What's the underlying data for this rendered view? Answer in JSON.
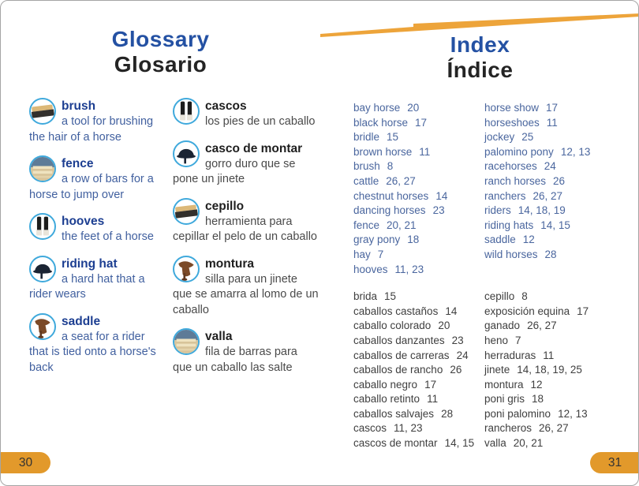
{
  "colors": {
    "accent_orange": "#e2992b",
    "swoosh_orange": "#eda43a",
    "heading_blue": "#2451a3",
    "heading_black": "#242424",
    "glossary_term_en": "#1c3e91",
    "glossary_def_en": "#41609f",
    "index_en_blue": "#4a669e",
    "index_es_gray": "#3f3f3f",
    "icon_ring_blue": "#3fa9dc"
  },
  "left_page": {
    "title_en": "Glossary",
    "title_es": "Glosario",
    "page_number": "30",
    "entries_en": [
      {
        "term": "brush",
        "definition": "a tool for brushing the hair of a horse",
        "icon": "brush-icon"
      },
      {
        "term": "fence",
        "definition": "a row of bars for a horse to jump over",
        "icon": "fence-icon"
      },
      {
        "term": "hooves",
        "definition": "the feet of a horse",
        "icon": "hooves-icon"
      },
      {
        "term": "riding hat",
        "definition": "a hard hat that a rider wears",
        "icon": "riding-hat-icon"
      },
      {
        "term": "saddle",
        "definition": "a seat for a rider that is tied onto a horse's back",
        "icon": "saddle-icon"
      }
    ],
    "entries_es": [
      {
        "term": "cascos",
        "definition": "los pies de un caballo",
        "icon": "hooves-icon"
      },
      {
        "term": "casco de montar",
        "definition": "gorro duro que se pone un jinete",
        "icon": "riding-hat-icon"
      },
      {
        "term": "cepillo",
        "definition": "herramienta para cepillar el pelo de un caballo",
        "icon": "brush-icon"
      },
      {
        "term": "montura",
        "definition": "silla para un jinete que se amarra al lomo de un caballo",
        "icon": "saddle-icon"
      },
      {
        "term": "valla",
        "definition": "fila de barras para que un caballo las salte",
        "icon": "fence-icon"
      }
    ]
  },
  "right_page": {
    "title_en": "Index",
    "title_es": "Índice",
    "page_number": "31",
    "index_en_col1": [
      {
        "term": "bay horse",
        "pages": "20"
      },
      {
        "term": "black horse",
        "pages": "17"
      },
      {
        "term": "bridle",
        "pages": "15"
      },
      {
        "term": "brown horse",
        "pages": "11"
      },
      {
        "term": "brush",
        "pages": "8"
      },
      {
        "term": "cattle",
        "pages": "26, 27"
      },
      {
        "term": "chestnut horses",
        "pages": "14"
      },
      {
        "term": "dancing horses",
        "pages": "23"
      },
      {
        "term": "fence",
        "pages": "20, 21"
      },
      {
        "term": "gray pony",
        "pages": "18"
      },
      {
        "term": "hay",
        "pages": "7"
      },
      {
        "term": "hooves",
        "pages": "11, 23"
      }
    ],
    "index_en_col2": [
      {
        "term": "horse show",
        "pages": "17"
      },
      {
        "term": "horseshoes",
        "pages": "11"
      },
      {
        "term": "jockey",
        "pages": "25"
      },
      {
        "term": "palomino pony",
        "pages": "12, 13"
      },
      {
        "term": "racehorses",
        "pages": "24"
      },
      {
        "term": "ranch horses",
        "pages": "26"
      },
      {
        "term": "ranchers",
        "pages": "26, 27"
      },
      {
        "term": "riders",
        "pages": "14, 18, 19"
      },
      {
        "term": "riding hats",
        "pages": "14, 15"
      },
      {
        "term": "saddle",
        "pages": "12"
      },
      {
        "term": "wild horses",
        "pages": "28"
      }
    ],
    "index_es_col1": [
      {
        "term": "brida",
        "pages": "15"
      },
      {
        "term": "caballos castaños",
        "pages": "14"
      },
      {
        "term": "caballo colorado",
        "pages": "20"
      },
      {
        "term": "caballos danzantes",
        "pages": "23"
      },
      {
        "term": "caballos de carreras",
        "pages": "24"
      },
      {
        "term": "caballos de rancho",
        "pages": "26"
      },
      {
        "term": "caballo negro",
        "pages": "17"
      },
      {
        "term": "caballo retinto",
        "pages": "11"
      },
      {
        "term": "caballos salvajes",
        "pages": "28"
      },
      {
        "term": "cascos",
        "pages": "11, 23"
      },
      {
        "term": "cascos de montar",
        "pages": "14, 15"
      }
    ],
    "index_es_col2": [
      {
        "term": "cepillo",
        "pages": "8"
      },
      {
        "term": "exposición equina",
        "pages": "17"
      },
      {
        "term": "ganado",
        "pages": "26, 27"
      },
      {
        "term": "heno",
        "pages": "7"
      },
      {
        "term": "herraduras",
        "pages": "11"
      },
      {
        "term": "jinete",
        "pages": "14, 18, 19, 25"
      },
      {
        "term": "montura",
        "pages": "12"
      },
      {
        "term": "poni gris",
        "pages": "18"
      },
      {
        "term": "poni palomino",
        "pages": "12, 13"
      },
      {
        "term": "rancheros",
        "pages": "26, 27"
      },
      {
        "term": "valla",
        "pages": "20, 21"
      }
    ]
  }
}
